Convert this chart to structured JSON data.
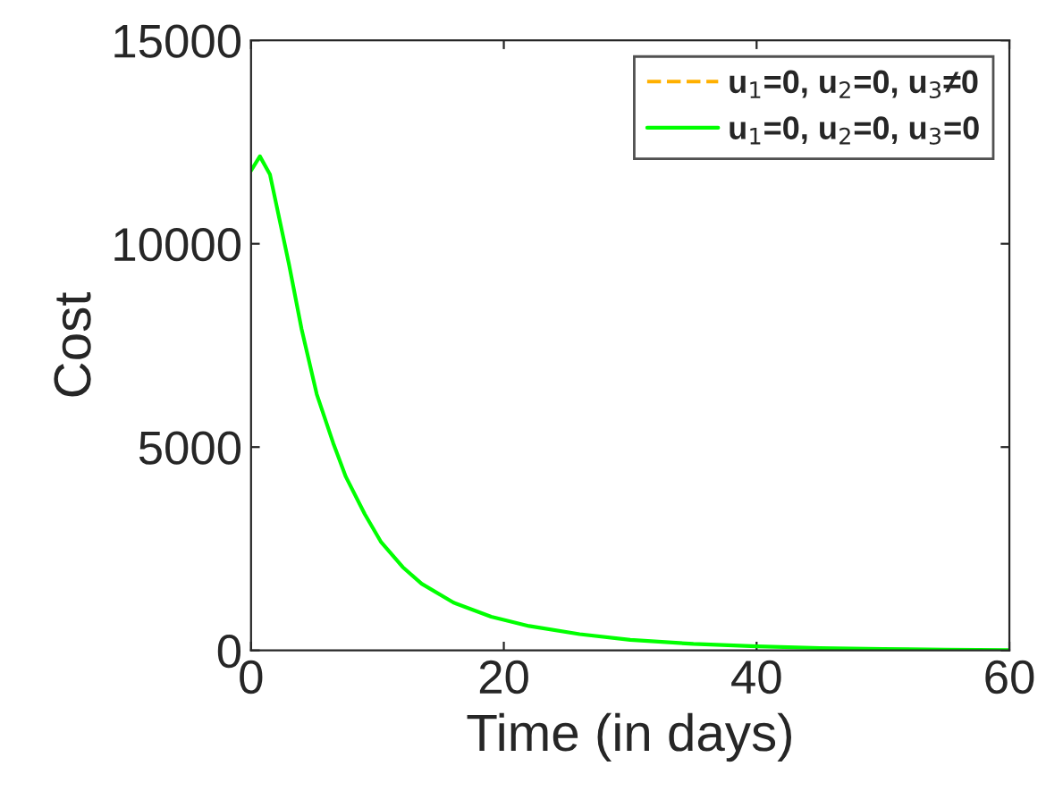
{
  "chart_data": {
    "type": "line",
    "xlabel": "Time (in days)",
    "ylabel": "Cost",
    "x": [
      0,
      0.7,
      1.5,
      3,
      4,
      5.2,
      6.5,
      7.5,
      9,
      10.3,
      12,
      13.5,
      16,
      19,
      22,
      26,
      30,
      35,
      40,
      45,
      50,
      55,
      60
    ],
    "series": [
      {
        "name": "u$_{1}$=0, u$_{2}$=0, u$_{3}$≠0",
        "color": "#ffb000",
        "line_style": "dashed",
        "values": [
          null,
          null,
          null,
          null,
          null,
          null,
          null,
          null,
          null,
          null,
          null,
          null,
          null,
          null,
          null,
          null,
          null,
          null,
          null,
          null,
          null,
          null,
          null
        ]
      },
      {
        "name": "u$_{1}$=0, u$_{2}$=0, u$_{3}$=0",
        "color": "#00ff00",
        "line_style": "solid",
        "values": [
          11800,
          12150,
          11700,
          9500,
          7900,
          6300,
          5100,
          4270,
          3350,
          2660,
          2050,
          1640,
          1180,
          830,
          600,
          400,
          260,
          160,
          100,
          60,
          35,
          20,
          10
        ]
      }
    ],
    "xlim": [
      0,
      60
    ],
    "xticks": [
      0,
      20,
      40,
      60
    ],
    "ylim": [
      0,
      15000
    ],
    "yticks": [
      0,
      5000,
      10000,
      15000
    ],
    "grid": false,
    "legend": "top right",
    "marker": "none"
  }
}
